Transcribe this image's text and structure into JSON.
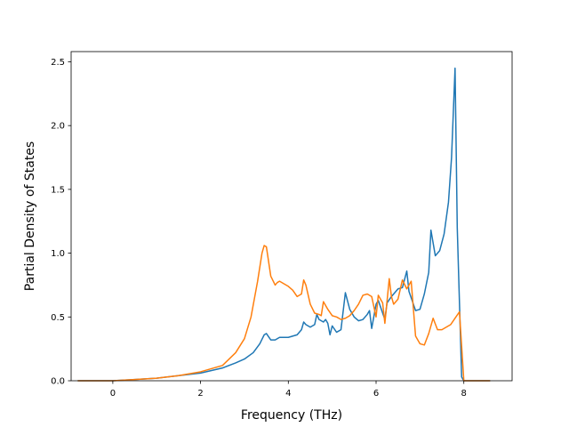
{
  "chart_data": {
    "type": "line",
    "title": "",
    "xlabel": "Frequency (THz)",
    "ylabel": "Partial Density of States",
    "xlim": [
      -0.95,
      9.1
    ],
    "ylim": [
      0,
      2.58
    ],
    "xticks": [
      0,
      2,
      4,
      6,
      8
    ],
    "xtick_labels": [
      "0",
      "2",
      "4",
      "6",
      "8"
    ],
    "yticks": [
      0.0,
      0.5,
      1.0,
      1.5,
      2.0,
      2.5
    ],
    "ytick_labels": [
      "0.0",
      "0.5",
      "1.0",
      "1.5",
      "2.0",
      "2.5"
    ],
    "grid": false,
    "legend": "none",
    "series": [
      {
        "color": "#1f77b4",
        "x": [
          -0.8,
          0.0,
          0.5,
          1.0,
          1.5,
          2.0,
          2.5,
          2.8,
          3.0,
          3.2,
          3.35,
          3.45,
          3.5,
          3.6,
          3.7,
          3.8,
          3.9,
          4.0,
          4.2,
          4.3,
          4.35,
          4.4,
          4.5,
          4.6,
          4.65,
          4.7,
          4.8,
          4.85,
          4.9,
          4.95,
          5.0,
          5.1,
          5.2,
          5.3,
          5.4,
          5.5,
          5.6,
          5.7,
          5.8,
          5.85,
          5.9,
          6.0,
          6.05,
          6.2,
          6.25,
          6.35,
          6.5,
          6.6,
          6.7,
          6.75,
          6.8,
          6.9,
          7.0,
          7.1,
          7.2,
          7.25,
          7.35,
          7.45,
          7.55,
          7.65,
          7.72,
          7.8,
          7.85,
          7.95,
          8.0,
          8.3,
          8.6
        ],
        "y": [
          0.0,
          0.0,
          0.01,
          0.02,
          0.04,
          0.06,
          0.1,
          0.14,
          0.17,
          0.22,
          0.29,
          0.36,
          0.37,
          0.32,
          0.32,
          0.34,
          0.34,
          0.34,
          0.36,
          0.4,
          0.46,
          0.44,
          0.42,
          0.44,
          0.52,
          0.48,
          0.46,
          0.48,
          0.45,
          0.36,
          0.43,
          0.38,
          0.4,
          0.69,
          0.56,
          0.5,
          0.47,
          0.48,
          0.52,
          0.55,
          0.41,
          0.6,
          0.63,
          0.48,
          0.61,
          0.66,
          0.72,
          0.73,
          0.86,
          0.7,
          0.65,
          0.55,
          0.56,
          0.68,
          0.85,
          1.18,
          0.98,
          1.02,
          1.15,
          1.4,
          1.75,
          2.45,
          1.2,
          0.03,
          0.0,
          0.0,
          0.0
        ]
      },
      {
        "color": "#ff7f0e",
        "x": [
          -0.8,
          0.0,
          0.5,
          1.0,
          1.5,
          2.0,
          2.5,
          2.8,
          3.0,
          3.15,
          3.3,
          3.4,
          3.45,
          3.5,
          3.6,
          3.7,
          3.75,
          3.8,
          4.0,
          4.1,
          4.2,
          4.3,
          4.35,
          4.4,
          4.5,
          4.6,
          4.7,
          4.75,
          4.8,
          4.9,
          5.0,
          5.1,
          5.2,
          5.3,
          5.4,
          5.5,
          5.6,
          5.7,
          5.8,
          5.9,
          6.0,
          6.05,
          6.15,
          6.2,
          6.3,
          6.35,
          6.4,
          6.5,
          6.6,
          6.7,
          6.8,
          6.9,
          7.0,
          7.1,
          7.2,
          7.3,
          7.4,
          7.5,
          7.6,
          7.7,
          7.8,
          7.9,
          8.0,
          8.3,
          8.6
        ],
        "y": [
          0.0,
          0.0,
          0.01,
          0.02,
          0.04,
          0.07,
          0.12,
          0.22,
          0.33,
          0.5,
          0.78,
          1.0,
          1.06,
          1.05,
          0.82,
          0.75,
          0.77,
          0.78,
          0.74,
          0.71,
          0.66,
          0.68,
          0.79,
          0.75,
          0.6,
          0.53,
          0.52,
          0.51,
          0.62,
          0.56,
          0.51,
          0.5,
          0.48,
          0.49,
          0.51,
          0.55,
          0.6,
          0.67,
          0.68,
          0.66,
          0.5,
          0.67,
          0.61,
          0.45,
          0.8,
          0.66,
          0.6,
          0.64,
          0.79,
          0.72,
          0.78,
          0.35,
          0.29,
          0.28,
          0.37,
          0.49,
          0.4,
          0.4,
          0.42,
          0.44,
          0.49,
          0.54,
          0.0,
          0.0,
          0.0
        ]
      }
    ]
  }
}
